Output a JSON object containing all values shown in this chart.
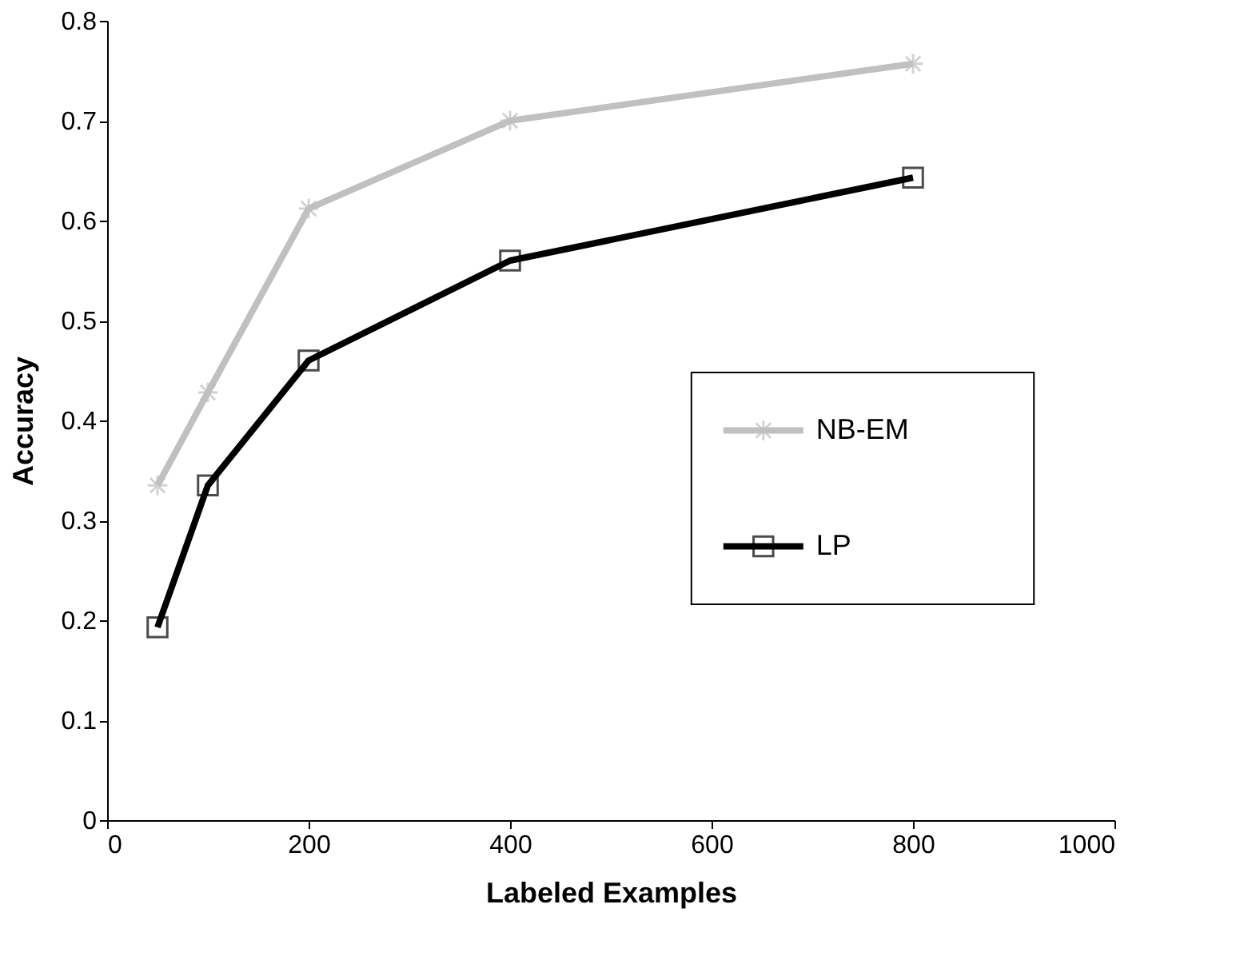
{
  "chart_data": {
    "type": "line",
    "xlabel": "Labeled Examples",
    "ylabel": "Accuracy",
    "x": [
      50,
      100,
      200,
      400,
      800
    ],
    "series": [
      {
        "name": "NB-EM",
        "color": "#c0c0c0",
        "marker": "cross",
        "values": [
          0.335,
          0.428,
          0.612,
          0.7,
          0.757
        ]
      },
      {
        "name": "LP",
        "color": "#000000",
        "marker": "square",
        "values": [
          0.193,
          0.335,
          0.46,
          0.56,
          0.643
        ]
      }
    ],
    "xlim": [
      0,
      1000
    ],
    "xticks": [
      0,
      200,
      400,
      600,
      800,
      {
        "value": 1000,
        "label": "1000"
      }
    ],
    "ylim": [
      0,
      0.8
    ],
    "yticks": [
      0,
      0.1,
      0.2,
      0.3,
      0.4,
      0.5,
      0.6,
      0.7,
      0.8
    ],
    "grid": false,
    "legend": "right",
    "line_style": "solid"
  }
}
